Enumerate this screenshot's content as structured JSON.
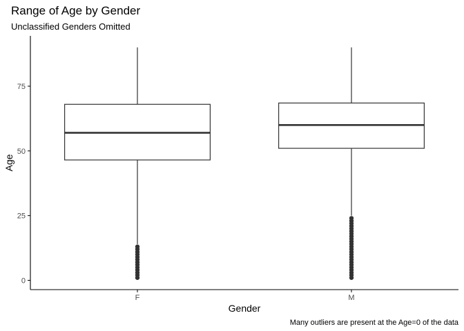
{
  "chart_data": {
    "type": "boxplot",
    "title": "Range of Age by Gender",
    "subtitle": "Unclassified Genders Omitted",
    "xlabel": "Gender",
    "ylabel": "Age",
    "caption": "Many outliers are present at the Age=0 of the data",
    "categories": [
      "F",
      "M"
    ],
    "ylim": [
      -3.5,
      93
    ],
    "yticks": [
      0,
      25,
      50,
      75
    ],
    "grid": false,
    "legend": "none",
    "colors": {
      "box_fill": "#ffffff",
      "line": "#333333",
      "axis": "#000000"
    },
    "boxes": [
      {
        "category": "F",
        "whisker_low": 14,
        "q1": 46.5,
        "median": 57,
        "q3": 68,
        "whisker_high": 90,
        "outliers": [
          1,
          2,
          3,
          4,
          5,
          6,
          7,
          8,
          9,
          10,
          11,
          12,
          13
        ]
      },
      {
        "category": "M",
        "whisker_low": 25,
        "q1": 51,
        "median": 60,
        "q3": 68.5,
        "whisker_high": 90,
        "outliers": [
          1,
          2,
          3,
          4,
          5,
          6,
          7,
          8,
          9,
          10,
          11,
          12,
          13,
          14,
          15,
          16,
          17,
          18,
          19,
          20,
          21,
          22,
          23,
          24
        ]
      }
    ]
  }
}
